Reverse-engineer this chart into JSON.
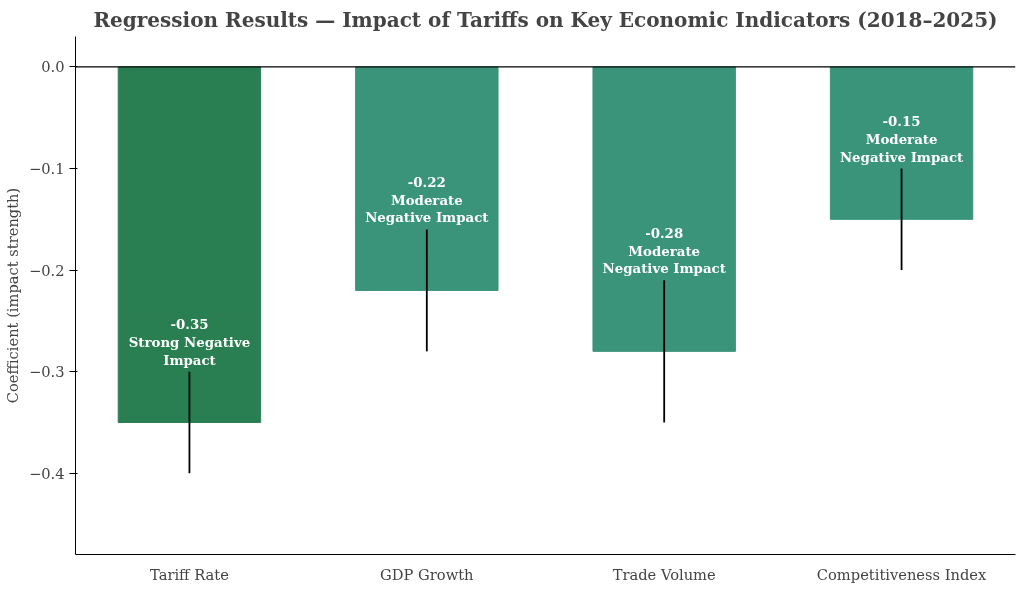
{
  "chart_data": {
    "type": "bar",
    "title": "Regression Results — Impact of Tariffs on Key Economic Indicators (2018–2025)",
    "ylabel": "Coefficient (impact strength)",
    "categories": [
      "Tariff Rate",
      "GDP Growth",
      "Trade Volume",
      "Competitiveness Index"
    ],
    "values": [
      -0.35,
      -0.22,
      -0.28,
      -0.15
    ],
    "colors": [
      "#2a7f52",
      "#3a947a",
      "#3a947a",
      "#3a947a"
    ],
    "errors": [
      0.05,
      0.06,
      0.07,
      0.05
    ],
    "value_labels": [
      "-0.35\nStrong Negative Impact",
      "-0.22\nModerate Negative Impact",
      "-0.28\nModerate Negative Impact",
      "-0.15\nModerate Negative Impact"
    ],
    "ylim": [
      -0.48,
      0.03
    ],
    "yticks": [
      {
        "value": 0,
        "label": "0.0"
      },
      {
        "value": -0.1,
        "label": "−0.1"
      },
      {
        "value": -0.2,
        "label": "−0.2"
      },
      {
        "value": -0.3,
        "label": "−0.3"
      },
      {
        "value": -0.4,
        "label": "−0.4"
      }
    ],
    "ref_lines": [
      {
        "axis": "y",
        "value": 0,
        "color": "#000000"
      }
    ],
    "grid": false
  }
}
